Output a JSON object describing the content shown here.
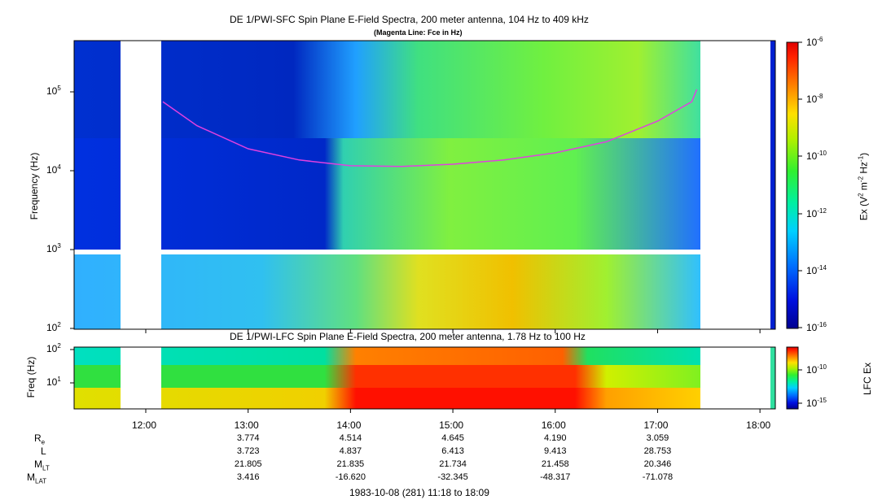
{
  "chart_data": [
    {
      "type": "heatmap",
      "title": "DE 1/PWI-SFC  Spin Plane E-Field Spectra, 200 meter antenna, 104 Hz to 409 kHz",
      "subtitle": "(Magenta Line: Fce in Hz)",
      "ylabel": "Frequency (Hz)",
      "yscale": "log",
      "ylim": [
        100,
        409000
      ],
      "y_ticks": [
        "10^2",
        "10^3",
        "10^4",
        "10^5"
      ],
      "x_ticks": [
        "12:00",
        "13:00",
        "14:00",
        "15:00",
        "16:00",
        "17:00",
        "18:00"
      ],
      "colorbar": {
        "label": "Ex (V^2 m^-2 Hz^-1)",
        "scale": "log",
        "range": [
          1e-16,
          1e-06
        ],
        "ticks": [
          "10^-6",
          "10^-8",
          "10^-10",
          "10^-12",
          "10^-14",
          "10^-16"
        ]
      },
      "fce_line": {
        "name": "Fce",
        "color": "#e040e0",
        "x": [
          "12:10",
          "12:30",
          "13:00",
          "13:30",
          "14:00",
          "14:30",
          "15:00",
          "15:30",
          "16:00",
          "16:30",
          "17:00",
          "17:20",
          "17:23"
        ],
        "y": [
          70000,
          35000,
          18000,
          13000,
          11000,
          10800,
          11500,
          13000,
          16000,
          22000,
          40000,
          70000,
          100000
        ]
      },
      "data_gaps": [
        [
          "11:48",
          "12:10"
        ],
        [
          "18:08",
          "18:09"
        ]
      ],
      "data_end": "17:23"
    },
    {
      "type": "heatmap",
      "title": "DE 1/PWI-LFC  Spin Plane E-Field Spectra, 200 meter antenna, 1.78 Hz to 100 Hz",
      "ylabel": "Freq (Hz)",
      "yscale": "log",
      "ylim": [
        1.78,
        100
      ],
      "y_ticks": [
        "10^1",
        "10^2"
      ],
      "x_ticks": [
        "12:00",
        "13:00",
        "14:00",
        "15:00",
        "16:00",
        "17:00",
        "18:00"
      ],
      "colorbar": {
        "label": "LFC Ex",
        "scale": "log",
        "ticks": [
          "10^-10",
          "10^-15"
        ]
      },
      "data_gaps": [
        [
          "11:48",
          "12:10"
        ],
        [
          "18:08",
          "18:09"
        ]
      ],
      "data_end": "17:23"
    }
  ],
  "ephemeris": {
    "rows": [
      {
        "label": "R",
        "sub": "e",
        "values": [
          "3.774",
          "4.514",
          "4.645",
          "4.190",
          "3.059"
        ]
      },
      {
        "label": "L",
        "sub": "",
        "values": [
          "3.723",
          "4.837",
          "6.413",
          "9.413",
          "28.753"
        ]
      },
      {
        "label": "M",
        "sub": "LT",
        "values": [
          "21.805",
          "21.835",
          "21.734",
          "21.458",
          "20.346"
        ]
      },
      {
        "label": "M",
        "sub": "LAT",
        "values": [
          "3.416",
          "-16.620",
          "-32.345",
          "-48.317",
          "-71.078"
        ]
      }
    ],
    "times": [
      "13:00",
      "14:00",
      "15:00",
      "16:00",
      "17:00"
    ]
  },
  "footer": "1983-10-08 (281) 11:18 to 18:09",
  "colors": {
    "fce_line": "#e040e0",
    "background": "#ffffff"
  }
}
